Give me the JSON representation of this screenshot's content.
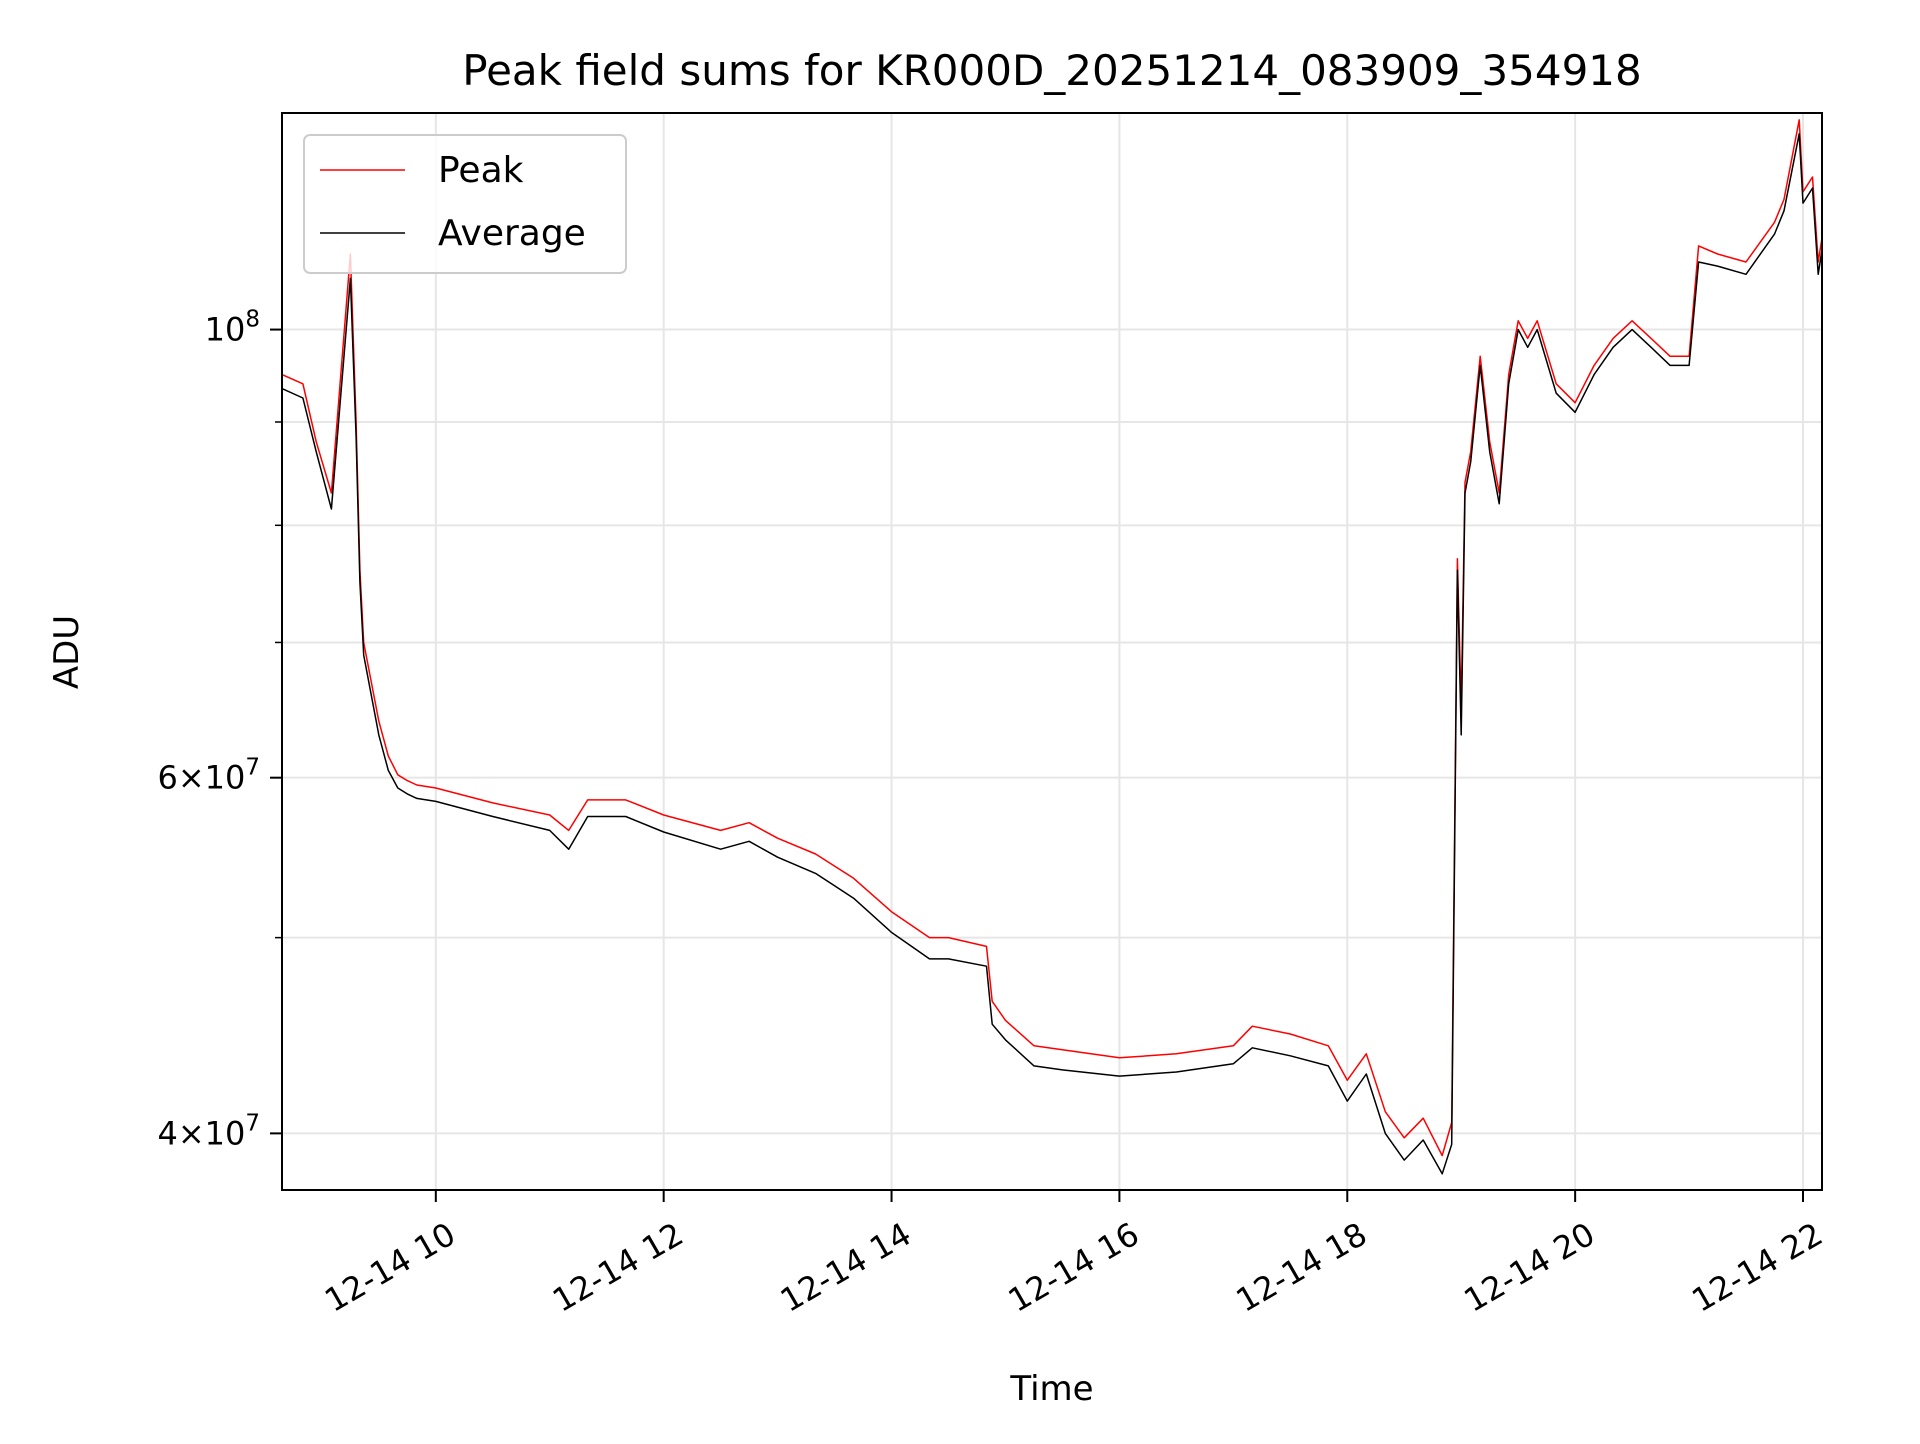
{
  "chart_data": {
    "type": "line",
    "title": "Peak field sums for KR000D_20251214_083909_354918",
    "xlabel": "Time",
    "ylabel": "ADU",
    "yscale": "log",
    "xlim": [
      "2025-12-14 08:39",
      "2025-12-14 22:10"
    ],
    "ylim": [
      37500000,
      128000000
    ],
    "grid": true,
    "legend_placement": "top-left",
    "x_ticks": [
      {
        "value": "2025-12-14 10:00",
        "label": "12-14 10"
      },
      {
        "value": "2025-12-14 12:00",
        "label": "12-14 12"
      },
      {
        "value": "2025-12-14 14:00",
        "label": "12-14 14"
      },
      {
        "value": "2025-12-14 16:00",
        "label": "12-14 16"
      },
      {
        "value": "2025-12-14 18:00",
        "label": "12-14 18"
      },
      {
        "value": "2025-12-14 20:00",
        "label": "12-14 20"
      },
      {
        "value": "2025-12-14 22:00",
        "label": "12-14 22"
      }
    ],
    "y_ticks_major": [
      {
        "value": 40000000,
        "mantissa": "4",
        "base": "10",
        "exponent": "7"
      },
      {
        "value": 60000000,
        "mantissa": "6",
        "base": "10",
        "exponent": "7"
      },
      {
        "value": 100000000,
        "mantissa": "",
        "base": "10",
        "exponent": "8"
      }
    ],
    "y_ticks_minor": [
      50000000,
      70000000,
      80000000,
      90000000
    ],
    "series": [
      {
        "name": "Peak",
        "color": "#ff0000",
        "x": [
          "2025-12-14 08:39",
          "2025-12-14 08:50",
          "2025-12-14 08:57",
          "2025-12-14 09:05",
          "2025-12-14 09:15",
          "2025-12-14 09:18",
          "2025-12-14 09:20",
          "2025-12-14 09:22",
          "2025-12-14 09:30",
          "2025-12-14 09:35",
          "2025-12-14 09:40",
          "2025-12-14 09:45",
          "2025-12-14 09:50",
          "2025-12-14 10:00",
          "2025-12-14 10:30",
          "2025-12-14 11:00",
          "2025-12-14 11:10",
          "2025-12-14 11:20",
          "2025-12-14 11:40",
          "2025-12-14 12:00",
          "2025-12-14 12:30",
          "2025-12-14 12:45",
          "2025-12-14 13:00",
          "2025-12-14 13:20",
          "2025-12-14 13:40",
          "2025-12-14 14:00",
          "2025-12-14 14:20",
          "2025-12-14 14:30",
          "2025-12-14 14:50",
          "2025-12-14 14:53",
          "2025-12-14 15:00",
          "2025-12-14 15:15",
          "2025-12-14 15:30",
          "2025-12-14 16:00",
          "2025-12-14 16:30",
          "2025-12-14 17:00",
          "2025-12-14 17:10",
          "2025-12-14 17:30",
          "2025-12-14 17:50",
          "2025-12-14 18:00",
          "2025-12-14 18:10",
          "2025-12-14 18:20",
          "2025-12-14 18:30",
          "2025-12-14 18:40",
          "2025-12-14 18:50",
          "2025-12-14 18:55",
          "2025-12-14 18:58",
          "2025-12-14 19:00",
          "2025-12-14 19:02",
          "2025-12-14 19:05",
          "2025-12-14 19:10",
          "2025-12-14 19:15",
          "2025-12-14 19:20",
          "2025-12-14 19:25",
          "2025-12-14 19:30",
          "2025-12-14 19:35",
          "2025-12-14 19:40",
          "2025-12-14 19:50",
          "2025-12-14 20:00",
          "2025-12-14 20:10",
          "2025-12-14 20:20",
          "2025-12-14 20:30",
          "2025-12-14 20:40",
          "2025-12-14 20:50",
          "2025-12-14 21:00",
          "2025-12-14 21:05",
          "2025-12-14 21:15",
          "2025-12-14 21:30",
          "2025-12-14 21:45",
          "2025-12-14 21:50",
          "2025-12-14 21:58",
          "2025-12-14 22:00",
          "2025-12-14 22:05",
          "2025-12-14 22:08",
          "2025-12-14 22:10"
        ],
        "y": [
          95000000,
          94000000,
          88000000,
          83000000,
          109000000,
          90000000,
          76000000,
          70000000,
          64000000,
          61500000,
          60200000,
          59800000,
          59500000,
          59300000,
          58300000,
          57500000,
          56500000,
          58500000,
          58500000,
          57500000,
          56500000,
          57000000,
          56000000,
          55000000,
          53500000,
          51500000,
          50000000,
          50000000,
          49500000,
          46500000,
          45500000,
          44200000,
          44000000,
          43600000,
          43800000,
          44200000,
          45200000,
          44800000,
          44200000,
          42500000,
          43800000,
          41000000,
          39800000,
          40700000,
          39000000,
          40500000,
          77000000,
          65000000,
          84000000,
          87000000,
          97000000,
          88000000,
          83000000,
          95000000,
          101000000,
          99000000,
          101000000,
          94000000,
          92000000,
          96000000,
          99000000,
          101000000,
          99000000,
          97000000,
          97000000,
          110000000,
          109000000,
          108000000,
          113000000,
          116000000,
          127000000,
          117000000,
          119000000,
          108000000,
          111000000
        ]
      },
      {
        "name": "Average",
        "color": "#000000",
        "x": [
          "2025-12-14 08:39",
          "2025-12-14 08:50",
          "2025-12-14 08:57",
          "2025-12-14 09:05",
          "2025-12-14 09:15",
          "2025-12-14 09:18",
          "2025-12-14 09:20",
          "2025-12-14 09:22",
          "2025-12-14 09:30",
          "2025-12-14 09:35",
          "2025-12-14 09:40",
          "2025-12-14 09:45",
          "2025-12-14 09:50",
          "2025-12-14 10:00",
          "2025-12-14 10:30",
          "2025-12-14 11:00",
          "2025-12-14 11:10",
          "2025-12-14 11:20",
          "2025-12-14 11:40",
          "2025-12-14 12:00",
          "2025-12-14 12:30",
          "2025-12-14 12:45",
          "2025-12-14 13:00",
          "2025-12-14 13:20",
          "2025-12-14 13:40",
          "2025-12-14 14:00",
          "2025-12-14 14:20",
          "2025-12-14 14:30",
          "2025-12-14 14:50",
          "2025-12-14 14:53",
          "2025-12-14 15:00",
          "2025-12-14 15:15",
          "2025-12-14 15:30",
          "2025-12-14 16:00",
          "2025-12-14 16:30",
          "2025-12-14 17:00",
          "2025-12-14 17:10",
          "2025-12-14 17:30",
          "2025-12-14 17:50",
          "2025-12-14 18:00",
          "2025-12-14 18:10",
          "2025-12-14 18:20",
          "2025-12-14 18:30",
          "2025-12-14 18:40",
          "2025-12-14 18:50",
          "2025-12-14 18:55",
          "2025-12-14 18:58",
          "2025-12-14 19:00",
          "2025-12-14 19:02",
          "2025-12-14 19:05",
          "2025-12-14 19:10",
          "2025-12-14 19:15",
          "2025-12-14 19:20",
          "2025-12-14 19:25",
          "2025-12-14 19:30",
          "2025-12-14 19:35",
          "2025-12-14 19:40",
          "2025-12-14 19:50",
          "2025-12-14 20:00",
          "2025-12-14 20:10",
          "2025-12-14 20:20",
          "2025-12-14 20:30",
          "2025-12-14 20:40",
          "2025-12-14 20:50",
          "2025-12-14 21:00",
          "2025-12-14 21:05",
          "2025-12-14 21:15",
          "2025-12-14 21:30",
          "2025-12-14 21:45",
          "2025-12-14 21:50",
          "2025-12-14 21:58",
          "2025-12-14 22:00",
          "2025-12-14 22:05",
          "2025-12-14 22:08",
          "2025-12-14 22:10"
        ],
        "y": [
          93500000,
          92500000,
          87000000,
          81500000,
          106000000,
          88500000,
          75000000,
          69000000,
          63000000,
          60500000,
          59300000,
          58900000,
          58600000,
          58400000,
          57400000,
          56500000,
          55300000,
          57400000,
          57400000,
          56400000,
          55300000,
          55800000,
          54800000,
          53800000,
          52300000,
          50300000,
          48800000,
          48800000,
          48400000,
          45300000,
          44500000,
          43200000,
          43000000,
          42700000,
          42900000,
          43300000,
          44100000,
          43700000,
          43200000,
          41500000,
          42800000,
          40000000,
          38800000,
          39700000,
          38200000,
          39500000,
          76000000,
          63000000,
          83000000,
          86000000,
          96000000,
          87000000,
          82000000,
          94000000,
          100000000,
          98000000,
          100000000,
          93000000,
          91000000,
          95000000,
          98000000,
          100000000,
          98000000,
          96000000,
          96000000,
          108000000,
          107500000,
          106500000,
          111500000,
          114500000,
          125000000,
          115500000,
          117500000,
          106500000,
          109500000
        ]
      }
    ]
  }
}
